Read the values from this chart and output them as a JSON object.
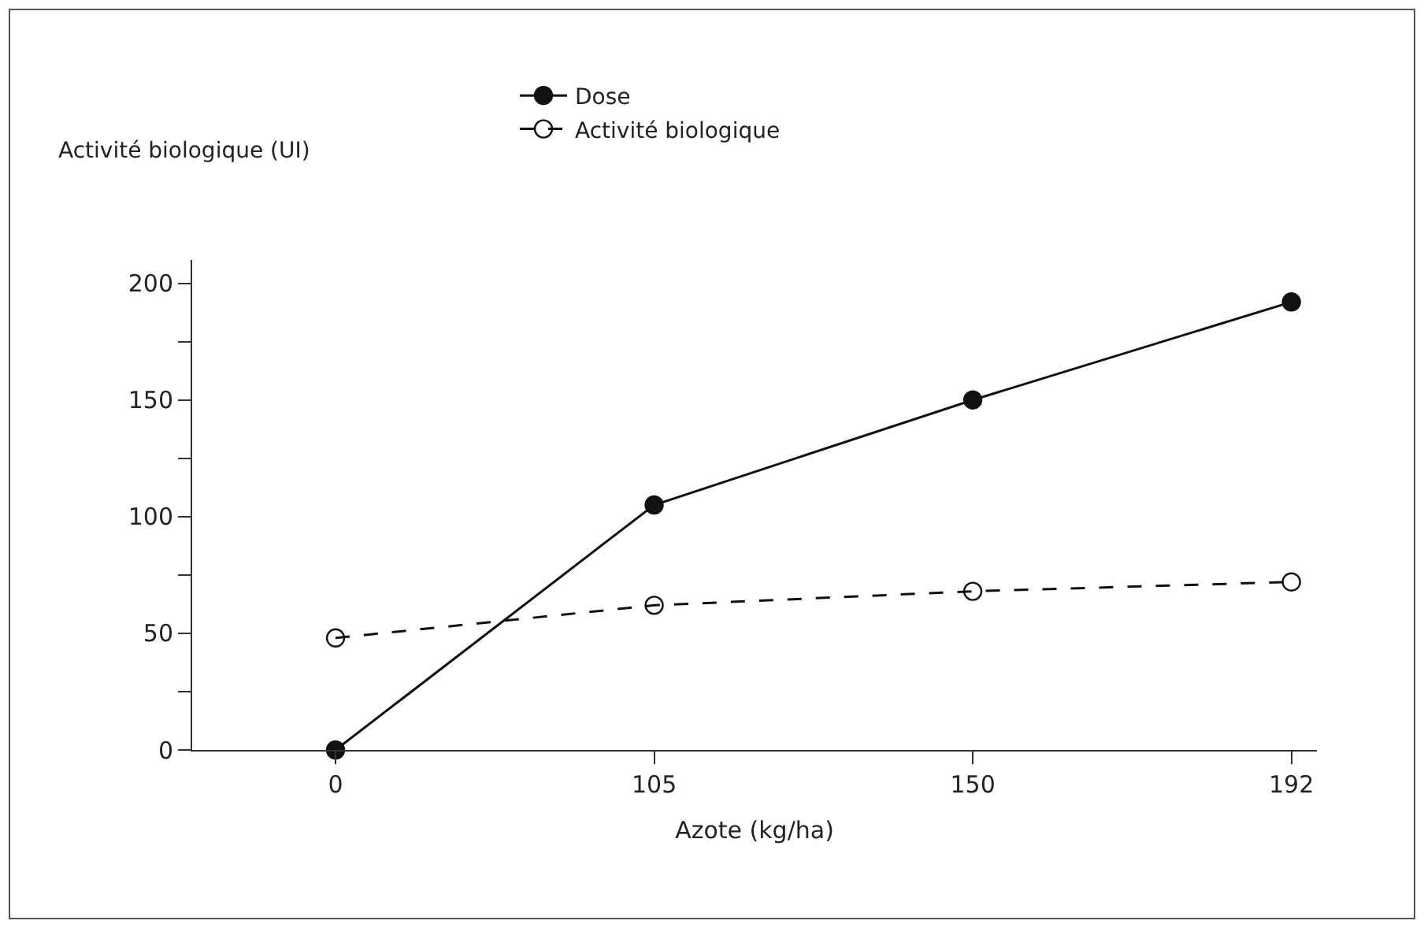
{
  "chart_data": {
    "type": "line",
    "ylabel": "Activité biologique (UI)",
    "xlabel": "Azote (kg/ha)",
    "categories": [
      "0",
      "105",
      "150",
      "192"
    ],
    "series": [
      {
        "name": "Dose",
        "color": "#111111",
        "values": [
          0,
          105,
          150,
          192
        ],
        "marker": "circle",
        "line_style": "solid"
      },
      {
        "name": "Activité biologique",
        "color": "#111111",
        "values": [
          48,
          62,
          68,
          72
        ],
        "marker": "circle",
        "line_style": "dashed"
      }
    ],
    "ylim": [
      0,
      210
    ],
    "yticks": [
      0,
      {
        "value": 25,
        "label": null
      },
      50,
      {
        "value": 75,
        "label": null
      },
      100,
      {
        "value": 125,
        "label": null
      },
      150,
      {
        "value": 175,
        "label": null
      },
      200
    ],
    "legend": "top"
  }
}
